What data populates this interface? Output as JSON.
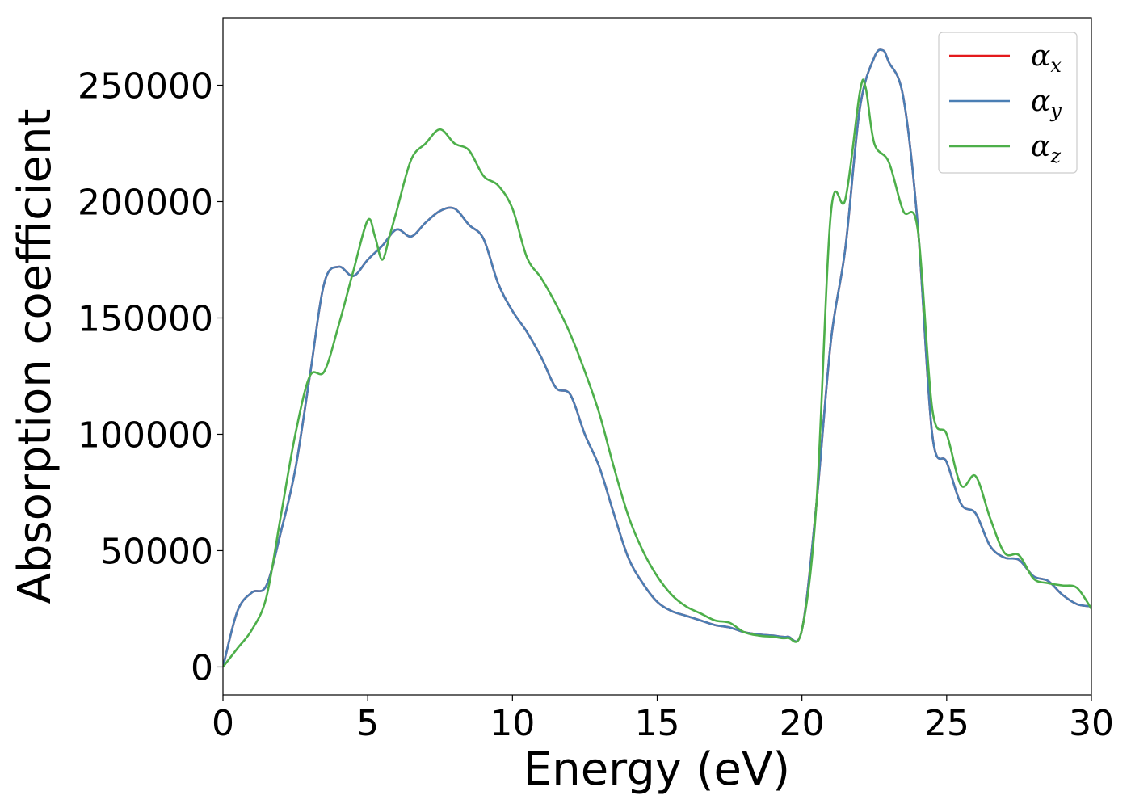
{
  "chart_data": {
    "type": "line",
    "title": "",
    "xlabel": "Energy (eV)",
    "ylabel": "Absorption coefficient",
    "xlim": [
      0,
      30
    ],
    "ylim": [
      -12000,
      279000
    ],
    "grid": false,
    "legend_position": "top-right",
    "xticks": [
      0,
      5,
      10,
      15,
      20,
      25,
      30
    ],
    "xtick_labels": [
      "0",
      "5",
      "10",
      "15",
      "20",
      "25",
      "30"
    ],
    "yticks": [
      0,
      50000,
      100000,
      150000,
      200000,
      250000
    ],
    "ytick_labels": [
      "0",
      "50000",
      "100000",
      "150000",
      "200000",
      "250000"
    ],
    "series": [
      {
        "name": "α",
        "subscript": "x",
        "color": "#e41a1c",
        "x": [
          0,
          0.5,
          1,
          1.5,
          2,
          2.5,
          3,
          3.5,
          4,
          4.5,
          5,
          5.5,
          6,
          6.5,
          7,
          7.5,
          8,
          8.5,
          9,
          9.5,
          10,
          10.5,
          11,
          11.5,
          12,
          12.5,
          13,
          13.5,
          14,
          14.5,
          15,
          15.5,
          16,
          16.5,
          17,
          17.5,
          18,
          18.5,
          19,
          19.5,
          20,
          20.5,
          21,
          21.5,
          22,
          22.5,
          22.8,
          23,
          23.5,
          24,
          24.5,
          25,
          25.5,
          26,
          26.5,
          27,
          27.5,
          28,
          28.5,
          29,
          29.5,
          30
        ],
        "y": [
          0,
          24000,
          32000,
          35000,
          58000,
          85000,
          125000,
          165000,
          172000,
          168000,
          175000,
          181000,
          188000,
          185000,
          191000,
          196000,
          197000,
          190000,
          184000,
          165000,
          153000,
          144000,
          133000,
          120000,
          117000,
          100000,
          86000,
          66000,
          47000,
          36000,
          28000,
          24000,
          22000,
          20000,
          18000,
          17000,
          15000,
          14000,
          13500,
          13000,
          16000,
          70000,
          140000,
          180000,
          240000,
          262000,
          265000,
          260000,
          245000,
          190000,
          100000,
          88000,
          70000,
          66000,
          52000,
          47000,
          46000,
          39000,
          37000,
          31000,
          27000,
          26000
        ]
      },
      {
        "name": "α",
        "subscript": "y",
        "color": "#4a7eb4",
        "x": [
          0,
          0.5,
          1,
          1.5,
          2,
          2.5,
          3,
          3.5,
          4,
          4.5,
          5,
          5.5,
          6,
          6.5,
          7,
          7.5,
          8,
          8.5,
          9,
          9.5,
          10,
          10.5,
          11,
          11.5,
          12,
          12.5,
          13,
          13.5,
          14,
          14.5,
          15,
          15.5,
          16,
          16.5,
          17,
          17.5,
          18,
          18.5,
          19,
          19.5,
          20,
          20.5,
          21,
          21.5,
          22,
          22.5,
          22.8,
          23,
          23.5,
          24,
          24.5,
          25,
          25.5,
          26,
          26.5,
          27,
          27.5,
          28,
          28.5,
          29,
          29.5,
          30
        ],
        "y": [
          0,
          24000,
          32000,
          35000,
          58000,
          85000,
          125000,
          165000,
          172000,
          168000,
          175000,
          181000,
          188000,
          185000,
          191000,
          196000,
          197000,
          190000,
          184000,
          165000,
          153000,
          144000,
          133000,
          120000,
          117000,
          100000,
          86000,
          66000,
          47000,
          36000,
          28000,
          24000,
          22000,
          20000,
          18000,
          17000,
          15000,
          14000,
          13500,
          13000,
          16000,
          70000,
          140000,
          180000,
          240000,
          262000,
          265000,
          260000,
          245000,
          190000,
          100000,
          88000,
          70000,
          66000,
          52000,
          47000,
          46000,
          39000,
          37000,
          31000,
          27000,
          26000
        ]
      },
      {
        "name": "α",
        "subscript": "z",
        "color": "#4daf4a",
        "x": [
          0,
          0.5,
          1,
          1.5,
          2,
          2.5,
          3,
          3.5,
          4,
          4.5,
          5,
          5.25,
          5.5,
          5.75,
          6,
          6.5,
          7,
          7.5,
          8,
          8.5,
          9,
          9.5,
          10,
          10.5,
          11,
          11.5,
          12,
          12.5,
          13,
          13.5,
          14,
          14.5,
          15,
          15.5,
          16,
          16.5,
          17,
          17.5,
          18,
          18.5,
          19,
          19.5,
          20,
          20.5,
          21,
          21.5,
          22,
          22.2,
          22.5,
          23,
          23.5,
          24,
          24.5,
          25,
          25.5,
          26,
          26.5,
          27,
          27.5,
          28,
          28.5,
          29,
          29.5,
          30
        ],
        "y": [
          0,
          8000,
          16000,
          30000,
          65000,
          100000,
          125000,
          127000,
          147000,
          170000,
          192000,
          185000,
          175000,
          185000,
          196000,
          218000,
          225000,
          231000,
          225000,
          222000,
          211000,
          207000,
          197000,
          176000,
          167000,
          156000,
          143000,
          127000,
          109000,
          86000,
          65000,
          50000,
          39000,
          31000,
          26000,
          23000,
          20000,
          19000,
          15000,
          13500,
          13000,
          12500,
          16000,
          70000,
          195000,
          201000,
          247000,
          249000,
          225000,
          217000,
          196000,
          188000,
          111000,
          100000,
          78000,
          82000,
          64000,
          49000,
          48000,
          38000,
          36000,
          35000,
          34000,
          25000
        ]
      }
    ]
  }
}
